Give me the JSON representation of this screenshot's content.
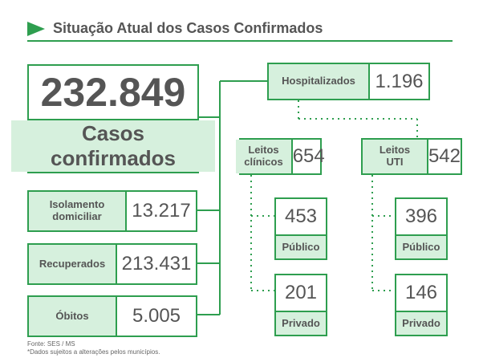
{
  "header": {
    "title": "Situação Atual dos Casos Confirmados"
  },
  "total": {
    "value": "232.849",
    "label": "Casos confirmados"
  },
  "isolamento": {
    "label": "Isolamento domiciliar",
    "value": "13.217"
  },
  "recuperados": {
    "label": "Recuperados",
    "value": "213.431"
  },
  "obitos": {
    "label": "Óbitos",
    "value": "5.005"
  },
  "hospitalizados": {
    "label": "Hospitalizados",
    "value": "1.196"
  },
  "leitos_clinicos": {
    "label": "Leitos clínicos",
    "value": "654",
    "publico": {
      "value": "453",
      "label": "Público"
    },
    "privado": {
      "value": "201",
      "label": "Privado"
    }
  },
  "leitos_uti": {
    "label": "Leitos UTI",
    "value": "542",
    "publico": {
      "value": "396",
      "label": "Público"
    },
    "privado": {
      "value": "146",
      "label": "Privado"
    }
  },
  "footer": {
    "source": "Fonte: SES / MS",
    "note": "*Dados sujeitos a alterações pelos municípios."
  },
  "colors": {
    "accent": "#2e9e4f",
    "label_bg": "#d6f0dd",
    "text": "#555555"
  },
  "icons": {
    "header_marker": "play-arrow-icon"
  }
}
